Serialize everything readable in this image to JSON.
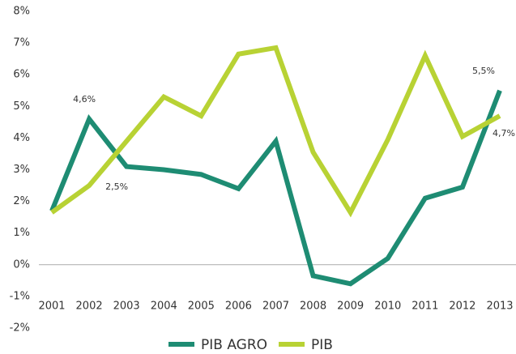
{
  "chart_data": {
    "type": "line",
    "categories": [
      "2001",
      "2002",
      "2003",
      "2004",
      "2005",
      "2006",
      "2007",
      "2008",
      "2009",
      "2010",
      "2011",
      "2012",
      "2013"
    ],
    "series": [
      {
        "name": "PIB AGRO",
        "color": "#1e8c73",
        "values": [
          1.7,
          4.6,
          3.1,
          3.0,
          2.85,
          2.4,
          3.9,
          -0.35,
          -0.6,
          0.2,
          2.1,
          2.45,
          5.5
        ],
        "value_labels": [
          null,
          "4,6%",
          null,
          null,
          null,
          null,
          null,
          null,
          null,
          null,
          null,
          null,
          "5,5%"
        ]
      },
      {
        "name": "PIB",
        "color": "#b8d234",
        "values": [
          1.65,
          2.5,
          3.9,
          5.3,
          4.7,
          6.65,
          6.85,
          3.55,
          1.65,
          3.95,
          6.6,
          4.05,
          4.7
        ],
        "value_labels": [
          null,
          "2,5%",
          null,
          null,
          null,
          null,
          null,
          null,
          null,
          null,
          null,
          null,
          "4,7%"
        ]
      }
    ],
    "ylim": [
      -2,
      8
    ],
    "yticks": [
      {
        "value": -2,
        "label": "-2%"
      },
      {
        "value": -1,
        "label": "-1%"
      },
      {
        "value": 0,
        "label": "0%"
      },
      {
        "value": 1,
        "label": "1%"
      },
      {
        "value": 2,
        "label": "2%"
      },
      {
        "value": 3,
        "label": "3%"
      },
      {
        "value": 4,
        "label": "4%"
      },
      {
        "value": 5,
        "label": "5%"
      },
      {
        "value": 6,
        "label": "6%"
      },
      {
        "value": 7,
        "label": "7%"
      },
      {
        "value": 8,
        "label": "8%"
      }
    ],
    "legend": "bottom"
  }
}
